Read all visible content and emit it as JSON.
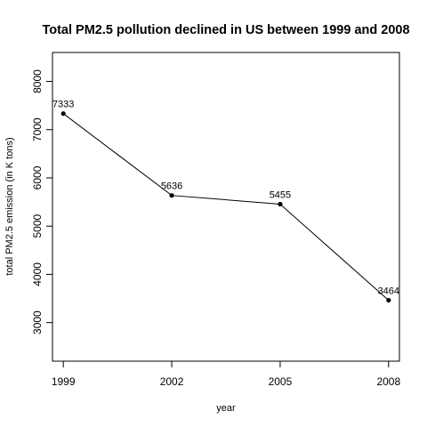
{
  "chart_data": {
    "type": "line",
    "title": "Total PM2.5 pollution declined in US between 1999 and 2008",
    "xlabel": "year",
    "ylabel": "total PM2.5 emission (in K tons)",
    "x": [
      1999,
      2002,
      2005,
      2008
    ],
    "series": [
      {
        "values": [
          7333,
          5636,
          5455,
          3464
        ]
      }
    ],
    "data_labels": [
      "7333",
      "5636",
      "5455",
      "3464"
    ],
    "x_ticks": [
      1999,
      2002,
      2005,
      2008
    ],
    "y_ticks": [
      3000,
      4000,
      5000,
      6000,
      7000,
      8000
    ],
    "xlim": [
      1998.7,
      2008.3
    ],
    "ylim": [
      2200,
      8600
    ],
    "grid": false,
    "legend": "none"
  }
}
